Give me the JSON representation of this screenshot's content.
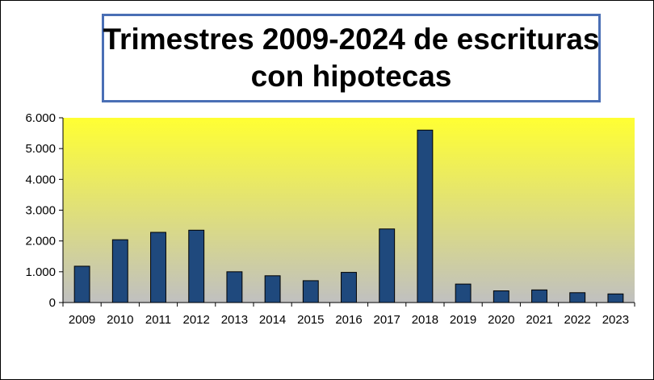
{
  "chart_data": {
    "type": "bar",
    "title_lines": [
      "Trimestres 2009-2024 de escrituras",
      "con hipotecas"
    ],
    "xlabel": "",
    "ylabel": "",
    "categories": [
      "2009",
      "2010",
      "2011",
      "2012",
      "2013",
      "2014",
      "2015",
      "2016",
      "2017",
      "2018",
      "2019",
      "2020",
      "2021",
      "2022",
      "2023"
    ],
    "values": [
      1180,
      2040,
      2280,
      2350,
      1000,
      870,
      710,
      980,
      2390,
      5600,
      600,
      380,
      410,
      320,
      280
    ],
    "ylim": [
      0,
      6000
    ],
    "yticks": [
      0,
      1000,
      2000,
      3000,
      4000,
      5000,
      6000
    ],
    "ytick_labels": [
      "0",
      "1.000",
      "2.000",
      "3.000",
      "4.000",
      "5.000",
      "6.000"
    ],
    "grid": false,
    "legend": "none",
    "colors": {
      "bar_fill": "#1f497d",
      "bar_stroke": "#000000",
      "plot_bg_top": "#ffff33",
      "plot_bg_bottom": "#c0c0c0",
      "title_border": "#4a6fb5"
    }
  }
}
